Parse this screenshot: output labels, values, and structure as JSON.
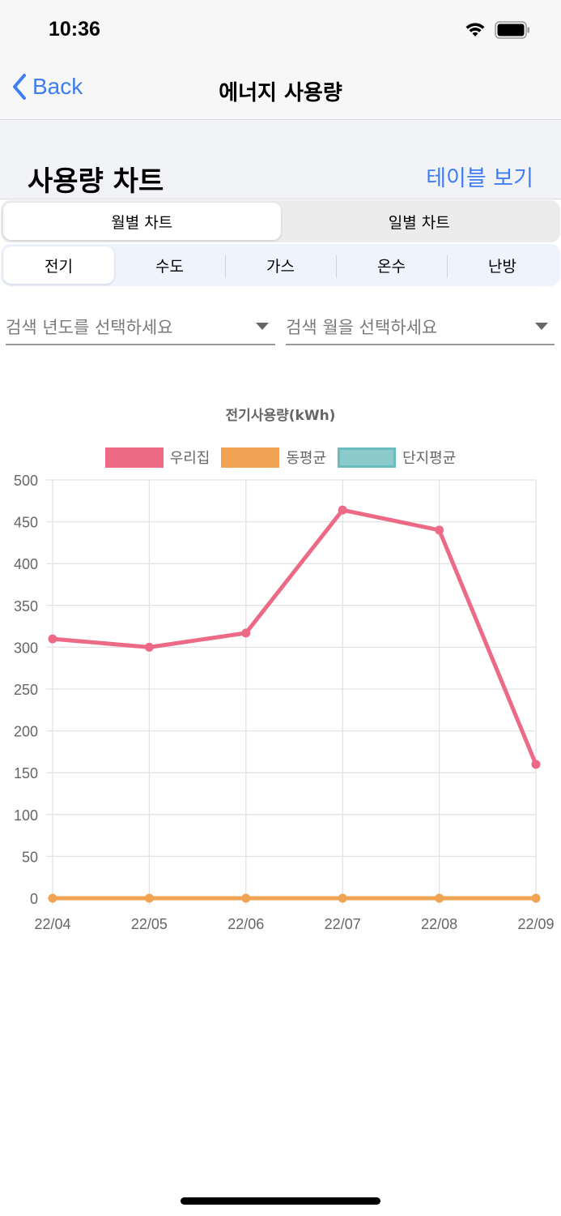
{
  "status_bar": {
    "time": "10:36",
    "icons": [
      "wifi-icon",
      "battery-icon"
    ]
  },
  "nav": {
    "back_label": "Back",
    "title": "에너지 사용량"
  },
  "header": {
    "title": "사용량 차트",
    "table_link": "테이블 보기"
  },
  "period_tabs": [
    {
      "label": "월별 차트",
      "active": true
    },
    {
      "label": "일별 차트",
      "active": false
    }
  ],
  "utility_tabs": [
    {
      "label": "전기",
      "active": true
    },
    {
      "label": "수도",
      "active": false
    },
    {
      "label": "가스",
      "active": false
    },
    {
      "label": "온수",
      "active": false
    },
    {
      "label": "난방",
      "active": false
    }
  ],
  "filters": {
    "year_placeholder": "검색 년도를 선택하세요",
    "month_placeholder": "검색 월을 선택하세요"
  },
  "colors": {
    "accent": "#3f7ef2",
    "series_home": "#ec6a86",
    "series_dong": "#f0a352",
    "series_complex_fill": "#8ccbcb",
    "series_complex_border": "#6bbcbc"
  },
  "chart_data": {
    "type": "line",
    "title": "전기사용량(kWh)",
    "xlabel": "",
    "ylabel": "",
    "categories": [
      "22/04",
      "22/05",
      "22/06",
      "22/07",
      "22/08",
      "22/09"
    ],
    "series": [
      {
        "name": "우리집",
        "color": "#ec6a86",
        "values": [
          310,
          300,
          317,
          464,
          440,
          160
        ]
      },
      {
        "name": "동평균",
        "color": "#f0a352",
        "values": [
          0,
          0,
          0,
          0,
          0,
          0
        ]
      },
      {
        "name": "단지평균",
        "color": "#8ccbcb",
        "values": []
      }
    ],
    "ylim": [
      0,
      500
    ],
    "yticks": [
      500,
      450,
      400,
      350,
      300,
      250,
      200,
      150,
      100,
      50,
      0
    ],
    "grid": true,
    "legend_position": "top"
  }
}
